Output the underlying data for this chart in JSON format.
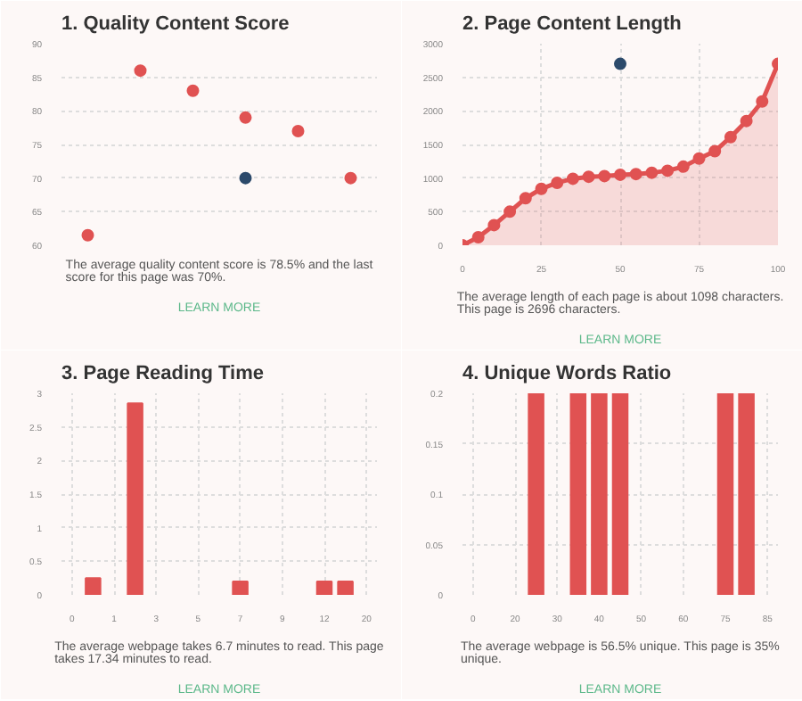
{
  "chart_data": [
    {
      "type": "scatter",
      "title": "1. Quality Content Score",
      "categories": [
        null,
        null,
        null,
        null,
        null,
        null
      ],
      "ylim": [
        60,
        90
      ],
      "yticks": [
        60,
        65,
        70,
        75,
        80,
        85,
        90
      ],
      "grid": "y",
      "tick_labels": "y",
      "marker": "circle",
      "series": [
        {
          "color": "#e05252",
          "values": [
            61.5,
            86,
            83,
            79,
            77,
            70
          ]
        },
        {
          "color": "#2c4a6b",
          "values": [
            null,
            null,
            null,
            70,
            null,
            null
          ]
        }
      ],
      "annotations": [
        "The average quality content score is 78.5% and the last score for this page was 70%.",
        "LEARN MORE"
      ]
    },
    {
      "type": "area",
      "title": "2. Page Content Length",
      "xlim": [
        0,
        100
      ],
      "xticks": [
        0,
        25,
        50,
        75,
        100
      ],
      "ylim": [
        0,
        3000
      ],
      "yticks": [
        0,
        500,
        1000,
        1500,
        2000,
        2500,
        3000
      ],
      "grid": true,
      "marker": "circle",
      "series": [
        {
          "color": "#e05252",
          "x": [
            0,
            5,
            10,
            15,
            20,
            25,
            30,
            35,
            40,
            45,
            50,
            55,
            60,
            65,
            70,
            75,
            80,
            85,
            90,
            95,
            100
          ],
          "values": [
            0,
            120,
            300,
            500,
            700,
            840,
            930,
            990,
            1020,
            1030,
            1050,
            1060,
            1080,
            1110,
            1170,
            1290,
            1400,
            1610,
            1850,
            2140,
            2700
          ]
        },
        {
          "type": "scatter",
          "color": "#2c4a6b",
          "x": [
            50
          ],
          "values": [
            2700
          ]
        }
      ],
      "annotations": [
        "The average length of each page is about 1098 characters. This page is 2696 characters.",
        "LEARN MORE"
      ]
    },
    {
      "type": "bar",
      "title": "3. Page Reading Time",
      "categories": [
        "0",
        null,
        "1",
        null,
        "3",
        null,
        "5",
        null,
        "7",
        null,
        "9",
        null,
        "12",
        null,
        "20"
      ],
      "ylim": [
        0,
        3
      ],
      "yticks": [
        0,
        0.5,
        1,
        1.5,
        2,
        2.5,
        3
      ],
      "grid": true,
      "color": "#e05252",
      "values": [
        null,
        0.25,
        null,
        2.85,
        null,
        null,
        null,
        null,
        0.2,
        null,
        null,
        null,
        0.2,
        0.2,
        null
      ],
      "annotations": [
        "The average webpage takes 6.7 minutes to read. This page takes 17.34 minutes to read.",
        "LEARN MORE"
      ]
    },
    {
      "type": "bar",
      "title": "4. Unique Words Ratio",
      "categories": [
        "0",
        null,
        "20",
        null,
        "30",
        null,
        "40",
        null,
        "50",
        null,
        "60",
        null,
        "75",
        null,
        "85"
      ],
      "ylim": [
        0,
        0.2
      ],
      "yticks": [
        0,
        0.05,
        0.1,
        0.15,
        0.2
      ],
      "grid": true,
      "color": "#e05252",
      "values": [
        null,
        null,
        null,
        0.2,
        null,
        0.2,
        0.2,
        0.2,
        null,
        null,
        null,
        null,
        0.2,
        0.2,
        null
      ],
      "annotations": [
        "The average webpage is 56.5% unique. This page is 35% unique.",
        "LEARN MORE"
      ]
    }
  ]
}
